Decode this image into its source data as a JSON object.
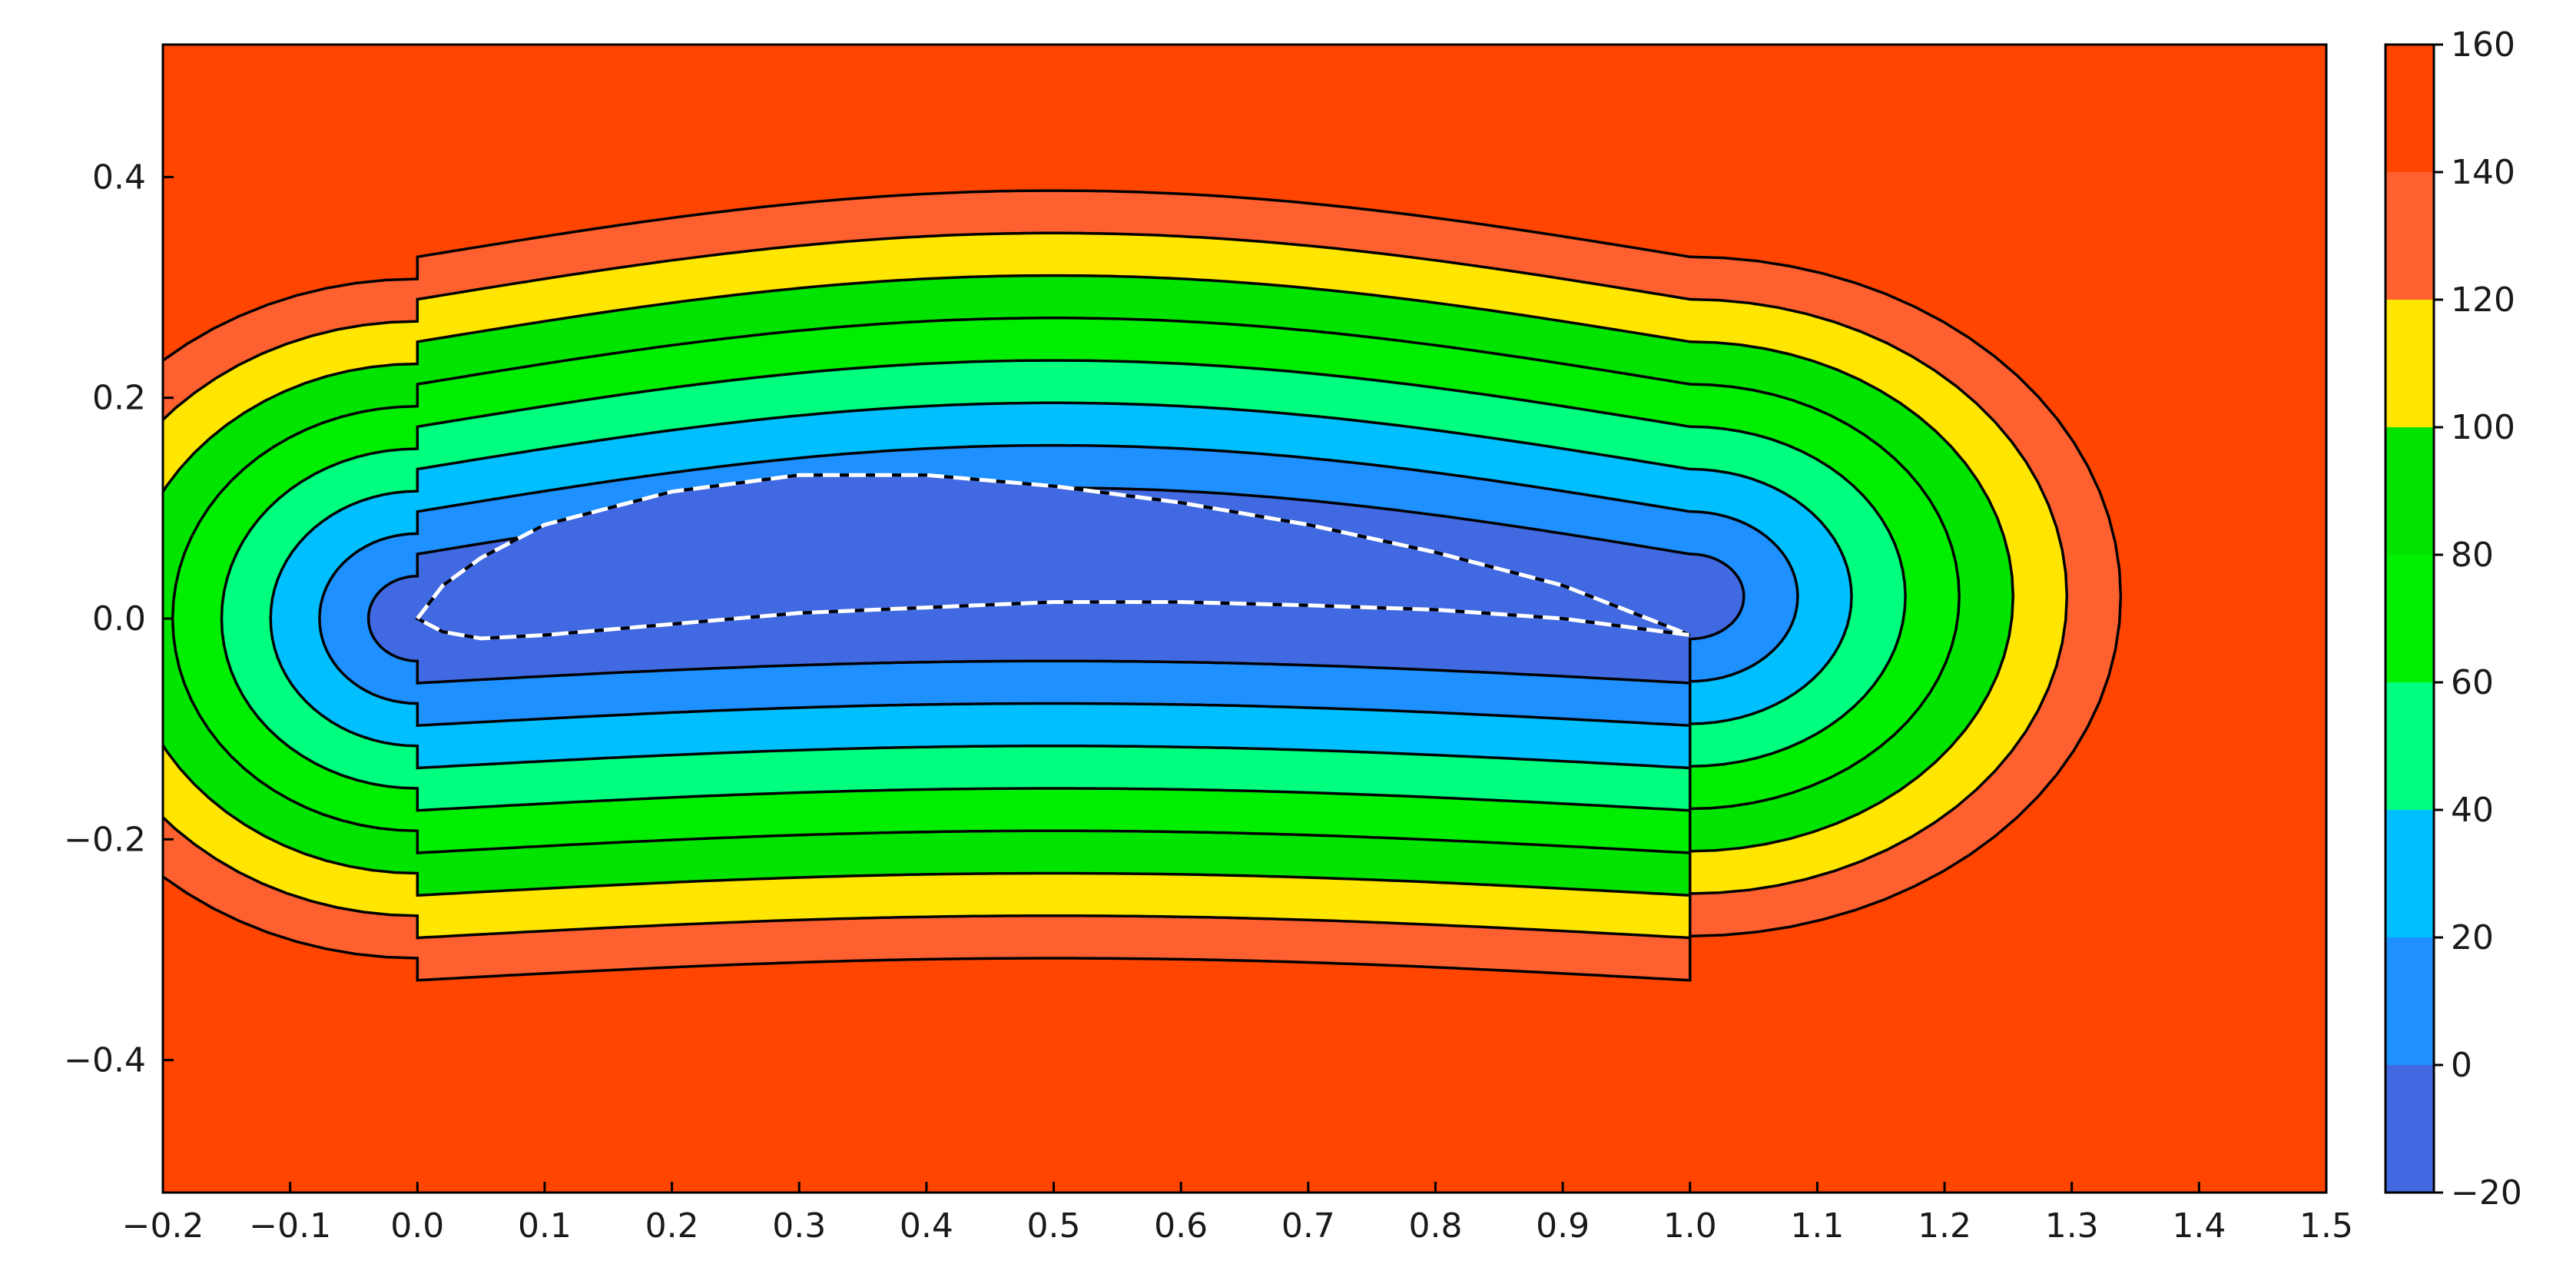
{
  "chart_data": {
    "type": "contour",
    "title": "",
    "xlabel": "",
    "ylabel": "",
    "xlim": [
      -0.2,
      1.5
    ],
    "ylim": [
      -0.52,
      0.52
    ],
    "x_ticks": [
      -0.2,
      -0.1,
      0.0,
      0.1,
      0.2,
      0.3,
      0.4,
      0.5,
      0.6,
      0.7,
      0.8,
      0.9,
      1.0,
      1.1,
      1.2,
      1.3,
      1.4,
      1.5
    ],
    "x_tick_labels": [
      "−0.2",
      "−0.1",
      "0.0",
      "0.1",
      "0.2",
      "0.3",
      "0.4",
      "0.5",
      "0.6",
      "0.7",
      "0.8",
      "0.9",
      "1.0",
      "1.1",
      "1.2",
      "1.3",
      "1.4",
      "1.5"
    ],
    "y_ticks": [
      -0.4,
      -0.2,
      0.0,
      0.2,
      0.4
    ],
    "y_tick_labels": [
      "−0.4",
      "−0.2",
      "0.0",
      "0.2",
      "0.4"
    ],
    "colorbar": {
      "levels": [
        -20,
        0,
        20,
        40,
        60,
        80,
        100,
        120,
        140,
        160
      ],
      "tick_labels": [
        "−20",
        "0",
        "20",
        "40",
        "60",
        "80",
        "100",
        "120",
        "140",
        "160"
      ],
      "colors": [
        "#4169e1",
        "#1e90ff",
        "#00bfff",
        "#00ff7f",
        "#00ee00",
        "#00e400",
        "#ffe600",
        "#ff6030",
        "#ff4500"
      ]
    },
    "airfoil": {
      "upper": [
        [
          0.0,
          0.0
        ],
        [
          0.02,
          0.03
        ],
        [
          0.05,
          0.055
        ],
        [
          0.1,
          0.085
        ],
        [
          0.2,
          0.115
        ],
        [
          0.3,
          0.13
        ],
        [
          0.4,
          0.13
        ],
        [
          0.5,
          0.12
        ],
        [
          0.6,
          0.105
        ],
        [
          0.7,
          0.085
        ],
        [
          0.8,
          0.06
        ],
        [
          0.9,
          0.03
        ],
        [
          1.0,
          -0.015
        ]
      ],
      "lower": [
        [
          0.0,
          0.0
        ],
        [
          0.02,
          -0.012
        ],
        [
          0.05,
          -0.018
        ],
        [
          0.1,
          -0.015
        ],
        [
          0.2,
          -0.005
        ],
        [
          0.3,
          0.005
        ],
        [
          0.4,
          0.01
        ],
        [
          0.5,
          0.015
        ],
        [
          0.6,
          0.015
        ],
        [
          0.7,
          0.012
        ],
        [
          0.8,
          0.008
        ],
        [
          0.9,
          0.0
        ],
        [
          1.0,
          -0.015
        ]
      ],
      "style": "white dashed"
    },
    "field": "distance-like field increasing away from airfoil; top-right and bottom-right corners reach 120-160"
  }
}
